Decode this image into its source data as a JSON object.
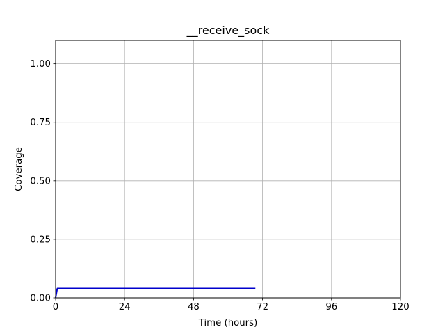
{
  "chart_data": {
    "type": "line",
    "title": "__receive_sock",
    "xlabel": "Time (hours)",
    "ylabel": "Coverage",
    "xlim": [
      0,
      120
    ],
    "ylim": [
      0,
      1.1
    ],
    "xticks": [
      0,
      24,
      48,
      72,
      96,
      120
    ],
    "xtick_labels": [
      "0",
      "24",
      "48",
      "72",
      "96",
      "120"
    ],
    "yticks": [
      0,
      0.25,
      0.5,
      0.75,
      1.0
    ],
    "ytick_labels": [
      "0.00",
      "0.25",
      "0.50",
      "0.75",
      "1.00"
    ],
    "grid": true,
    "series": [
      {
        "color": "#0000cc",
        "x": [
          0,
          0.5,
          0.6,
          69.5
        ],
        "y": [
          0,
          0.035,
          0.04,
          0.04
        ]
      }
    ]
  }
}
